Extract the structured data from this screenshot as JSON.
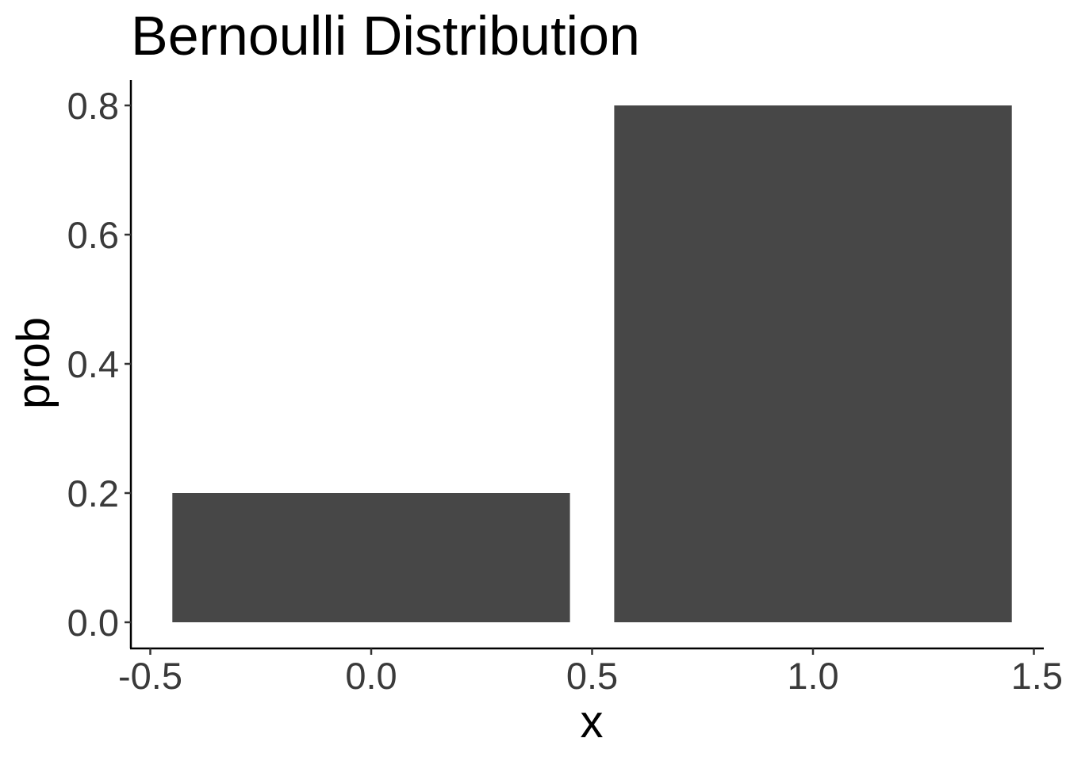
{
  "chart_data": {
    "type": "bar",
    "title": "Bernoulli Distribution",
    "xlabel": "x",
    "ylabel": "prob",
    "x": [
      0,
      1
    ],
    "values": [
      0.2,
      0.8
    ],
    "bar_width": 0.9,
    "xlim": [
      -0.5,
      1.5
    ],
    "ylim": [
      0,
      0.8
    ],
    "x_ticks": [
      -0.5,
      0.0,
      0.5,
      1.0,
      1.5
    ],
    "x_tick_labels": [
      "-0.5",
      "0.0",
      "0.5",
      "1.0",
      "1.5"
    ],
    "y_ticks": [
      0.0,
      0.2,
      0.4,
      0.6,
      0.8
    ],
    "y_tick_labels": [
      "0.0",
      "0.2",
      "0.4",
      "0.6",
      "0.8"
    ],
    "bar_color": "#474747",
    "grid": false,
    "legend": "none"
  }
}
